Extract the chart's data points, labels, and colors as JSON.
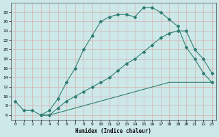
{
  "xlabel": "Humidex (Indice chaleur)",
  "bg_color": "#cce8e8",
  "grid_color": "#b0d4d4",
  "line_color": "#2e7d6d",
  "xlim": [
    -0.5,
    23.5
  ],
  "ylim": [
    5,
    30
  ],
  "xticks": [
    0,
    1,
    2,
    3,
    4,
    5,
    6,
    7,
    8,
    9,
    10,
    11,
    12,
    13,
    14,
    15,
    16,
    17,
    18,
    19,
    20,
    21,
    22,
    23
  ],
  "yticks": [
    6,
    8,
    10,
    12,
    14,
    16,
    18,
    20,
    22,
    24,
    26,
    28
  ],
  "line1_x": [
    0,
    1,
    2,
    3,
    4,
    5,
    6,
    7,
    8,
    9,
    10,
    11,
    12,
    13,
    14,
    15,
    16,
    17,
    18,
    19,
    20,
    21,
    22,
    23
  ],
  "line1_y": [
    9,
    7,
    7,
    6,
    7,
    9.5,
    13,
    16,
    20,
    23,
    26,
    27,
    27.5,
    27.5,
    27,
    29,
    29,
    28,
    26.5,
    25,
    20.5,
    18,
    15,
    13
  ],
  "line2_x": [
    3,
    4,
    5,
    6,
    7,
    8,
    9,
    10,
    11,
    12,
    13,
    14,
    15,
    16,
    17,
    18,
    19,
    20,
    21,
    22,
    23
  ],
  "line2_y": [
    6,
    6,
    7.5,
    9,
    10,
    11,
    12,
    13,
    14,
    15.5,
    17,
    18,
    19.5,
    21,
    22.5,
    23.5,
    24,
    24,
    20,
    18,
    15
  ],
  "line3_x": [
    3,
    4,
    5,
    6,
    7,
    8,
    9,
    10,
    11,
    12,
    13,
    14,
    15,
    16,
    17,
    18,
    19,
    20,
    21,
    22,
    23
  ],
  "line3_y": [
    6,
    6,
    6.5,
    7,
    7.5,
    8,
    8.5,
    9,
    9.5,
    10,
    10.5,
    11,
    11.5,
    12,
    12.5,
    13,
    13,
    13,
    13,
    13,
    13
  ]
}
